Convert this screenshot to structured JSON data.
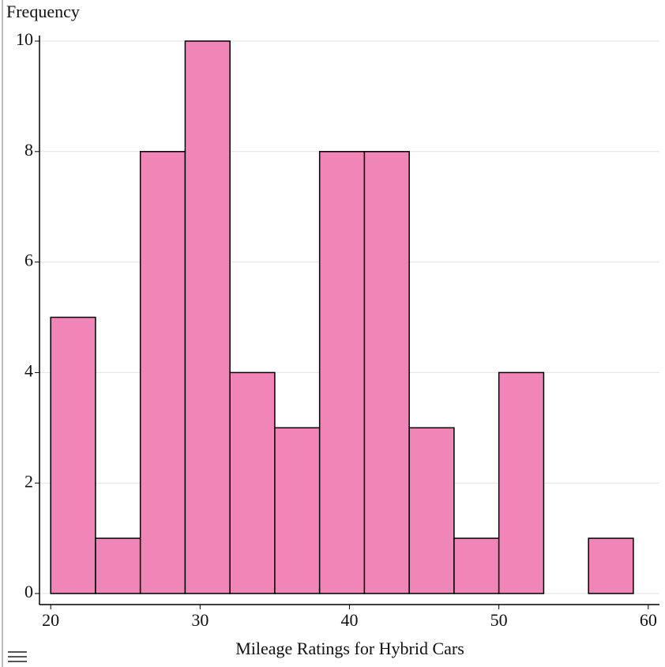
{
  "chart_data": {
    "type": "histogram",
    "x_label": "Mileage Ratings for Hybrid Cars",
    "y_label": "Frequency",
    "bins": [
      20,
      23,
      26,
      29,
      32,
      35,
      38,
      41,
      44,
      47,
      50,
      53,
      56,
      59
    ],
    "counts": [
      5,
      1,
      8,
      10,
      4,
      3,
      8,
      8,
      3,
      1,
      4,
      0,
      1
    ],
    "color": "#f085b8",
    "xlim": [
      19.25,
      60.75
    ],
    "ylim": [
      -0.2,
      10.1
    ],
    "xticks": [
      20,
      30,
      40,
      50,
      60
    ],
    "yticks": [
      0,
      2,
      4,
      6,
      8,
      10
    ],
    "grid": true
  }
}
